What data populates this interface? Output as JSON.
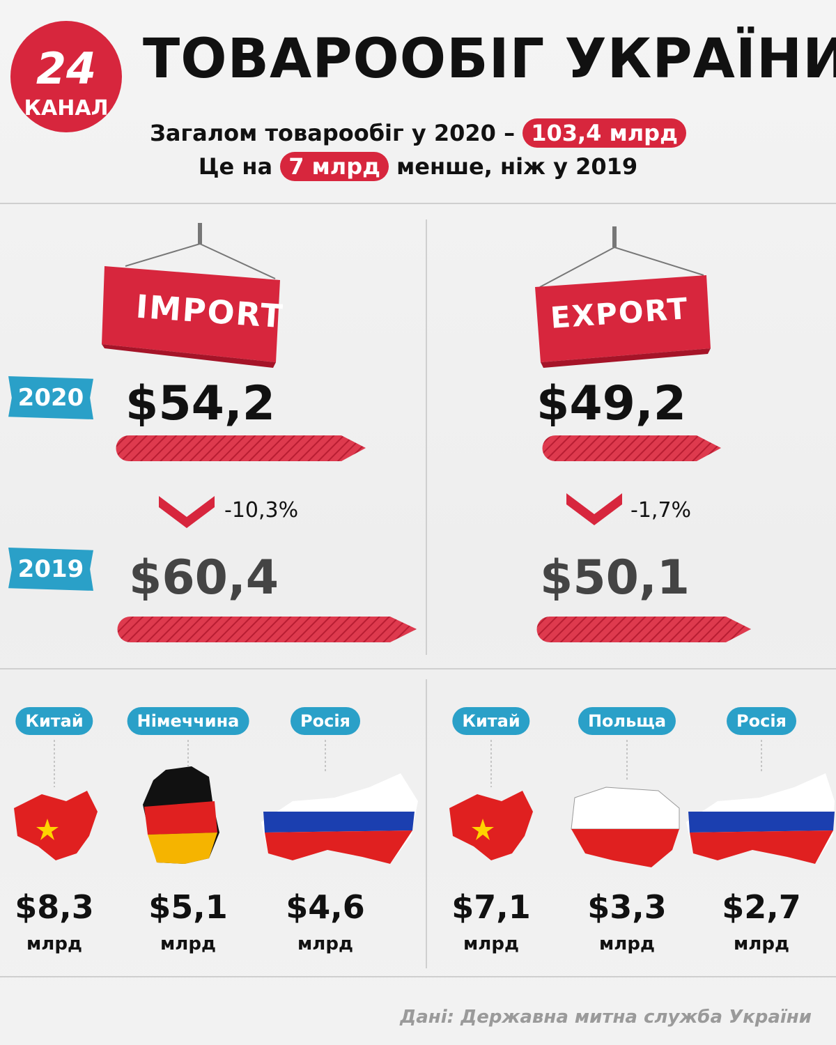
{
  "header": {
    "logo_number": "24",
    "logo_text": "КАНАЛ",
    "title": "ТОВАРООБІГ УКРАЇНИ",
    "line1_text": "Загалом товарообіг у 2020 –",
    "line1_highlight": "103,4 млрд",
    "line2_before": "Це на",
    "line2_highlight": "7 млрд",
    "line2_after": "менше, ніж у 2019"
  },
  "import": {
    "label": "IMPORT",
    "year_2020": "2020",
    "value_2020": "$54,2",
    "change": "-10,3%",
    "year_2019": "2019",
    "value_2019": "$60,4"
  },
  "export": {
    "label": "EXPORT",
    "value_2020": "$49,2",
    "change": "-1,7%",
    "value_2019": "$50,1"
  },
  "import_partners": [
    {
      "country": "Китай",
      "value": "$8,3",
      "unit": "млрд"
    },
    {
      "country": "Німеччина",
      "value": "$5,1",
      "unit": "млрд"
    },
    {
      "country": "Росія",
      "value": "$4,6",
      "unit": "млрд"
    }
  ],
  "export_partners": [
    {
      "country": "Китай",
      "value": "$7,1",
      "unit": "млрд"
    },
    {
      "country": "Польща",
      "value": "$3,3",
      "unit": "млрд"
    },
    {
      "country": "Росія",
      "value": "$2,7",
      "unit": "млрд"
    }
  ],
  "source": "Дані: Державна митна служба України"
}
